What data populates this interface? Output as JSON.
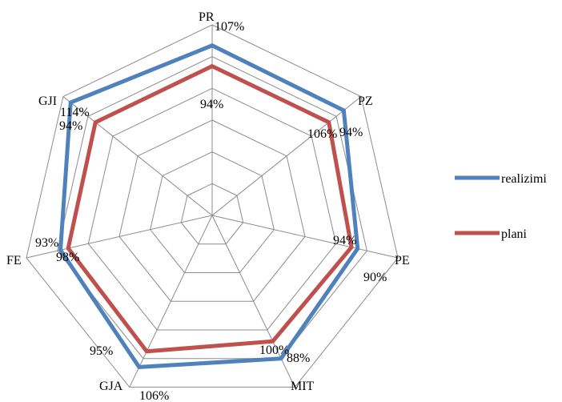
{
  "chart_data": {
    "type": "radar",
    "categories": [
      "PR",
      "PZ",
      "PE",
      "MIT",
      "GJA",
      "FE",
      "GJI"
    ],
    "series": [
      {
        "name": "realizimi",
        "values": [
          107,
          106,
          94,
          100,
          106,
          98,
          114
        ],
        "color": "#4f81bd"
      },
      {
        "name": "plani",
        "values": [
          94,
          94,
          90,
          88,
          95,
          93,
          94
        ],
        "color": "#c0504d"
      }
    ],
    "data_labels": [
      "107%",
      "106%",
      "94%",
      "100%",
      "106%",
      "98%",
      "114%",
      "94%",
      "94%",
      "90%",
      "88%",
      "95%",
      "93%",
      "94%"
    ],
    "axis_range": [
      0,
      120
    ],
    "gridlines": [
      20,
      40,
      60,
      80,
      100,
      120
    ],
    "legend_position": "right",
    "title": ""
  }
}
